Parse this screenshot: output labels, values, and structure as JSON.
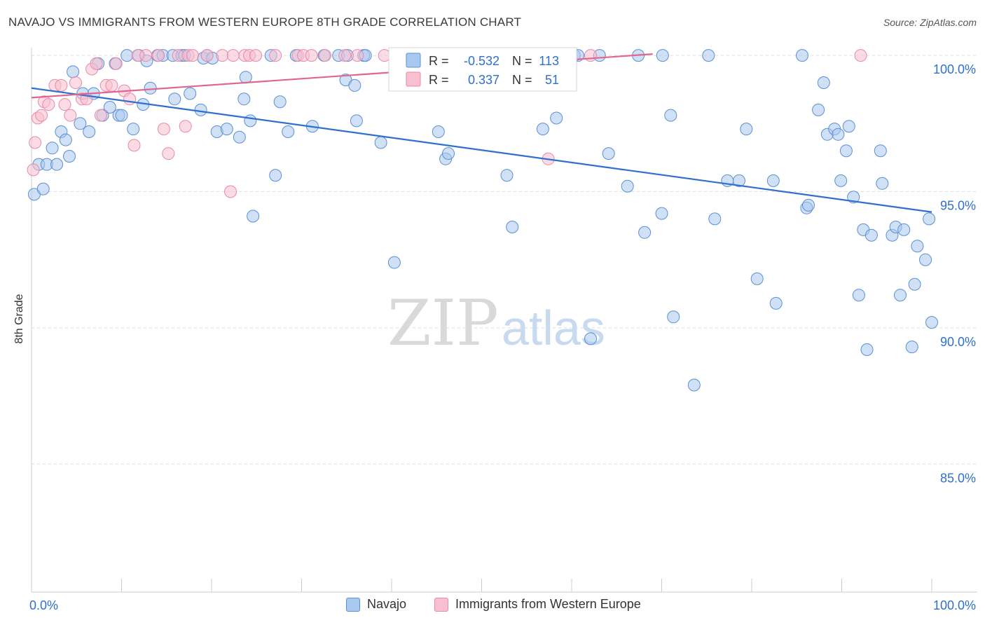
{
  "header": {
    "title": "NAVAJO VS IMMIGRANTS FROM WESTERN EUROPE 8TH GRADE CORRELATION CHART",
    "source": "Source: ZipAtlas.com"
  },
  "watermark": {
    "zip": "ZIP",
    "atlas": "atlas"
  },
  "colors": {
    "navajo_fill": "#a9c8ef",
    "navajo_stroke": "#5b8fd6",
    "navajo_line": "#2f6fcf",
    "western_fill": "#f7bfd0",
    "western_stroke": "#e88aa8",
    "western_line": "#e06690",
    "value_text": "#2f6fcf",
    "grid": "#dddddd"
  },
  "legend": {
    "rows": [
      {
        "series": "navajo",
        "r_label": "R =",
        "r_value": "-0.532",
        "n_label": "N =",
        "n_value": "113"
      },
      {
        "series": "western",
        "r_label": "R =",
        "r_value": "0.337",
        "n_label": "N =",
        "n_value": "51"
      }
    ]
  },
  "bottom_legend": [
    {
      "series": "navajo",
      "label": "Navajo"
    },
    {
      "series": "western",
      "label": "Immigrants from Western Europe"
    }
  ],
  "chart_data": {
    "type": "scatter",
    "title": "NAVAJO VS IMMIGRANTS FROM WESTERN EUROPE 8TH GRADE CORRELATION CHART",
    "xlabel": "",
    "ylabel": "8th Grade",
    "xlim": [
      0,
      100
    ],
    "ylim": [
      80.3,
      100.8
    ],
    "x_tick_labels": [
      {
        "value": 0,
        "label": "0.0%"
      },
      {
        "value": 100,
        "label": "100.0%"
      }
    ],
    "y_tick_labels": [
      {
        "value": 100,
        "label": "100.0%"
      },
      {
        "value": 95,
        "label": "95.0%"
      },
      {
        "value": 90,
        "label": "90.0%"
      },
      {
        "value": 85,
        "label": "85.0%"
      }
    ],
    "y_gridlines": [
      100,
      95,
      90,
      85
    ],
    "x_minor_ticks": [
      0,
      10,
      20,
      30,
      40,
      50,
      60,
      70,
      80,
      90,
      100
    ],
    "series": [
      {
        "name": "Navajo",
        "key": "navajo",
        "R": -0.532,
        "N": 113,
        "trend": {
          "x": [
            0,
            100
          ],
          "y": [
            98.8,
            94.25
          ]
        },
        "points": [
          [
            0.3,
            94.9
          ],
          [
            0.8,
            96
          ],
          [
            1.3,
            95.1
          ],
          [
            1.7,
            96
          ],
          [
            2.3,
            96.6
          ],
          [
            2.8,
            96
          ],
          [
            3.3,
            97.2
          ],
          [
            3.8,
            96.9
          ],
          [
            4.2,
            96.3
          ],
          [
            4.6,
            99.4
          ],
          [
            5.4,
            97.5
          ],
          [
            5.7,
            98.6
          ],
          [
            6.4,
            97.2
          ],
          [
            6.9,
            98.6
          ],
          [
            7.4,
            99.7
          ],
          [
            7.9,
            97.8
          ],
          [
            8.7,
            98.1
          ],
          [
            9.3,
            99.7
          ],
          [
            9.7,
            97.8
          ],
          [
            10,
            97.8
          ],
          [
            10.6,
            100
          ],
          [
            11.3,
            97.3
          ],
          [
            11.9,
            100
          ],
          [
            12.4,
            98.2
          ],
          [
            12.8,
            99.8
          ],
          [
            13.2,
            98.8
          ],
          [
            14,
            100
          ],
          [
            14.6,
            100
          ],
          [
            15.7,
            100
          ],
          [
            15.9,
            98.4
          ],
          [
            16.7,
            100
          ],
          [
            17,
            100
          ],
          [
            17.6,
            98.6
          ],
          [
            18.8,
            98
          ],
          [
            19.1,
            99.9
          ],
          [
            19.5,
            100
          ],
          [
            20.1,
            99.9
          ],
          [
            20.6,
            97.2
          ],
          [
            21.7,
            97.3
          ],
          [
            23.1,
            97
          ],
          [
            23.6,
            98.4
          ],
          [
            23.8,
            99.2
          ],
          [
            24.3,
            97.6
          ],
          [
            24.6,
            94.1
          ],
          [
            26.6,
            100
          ],
          [
            27.1,
            95.6
          ],
          [
            27.6,
            98.3
          ],
          [
            28.5,
            97.2
          ],
          [
            29.4,
            100
          ],
          [
            31.2,
            97.4
          ],
          [
            32.5,
            100
          ],
          [
            34.1,
            100
          ],
          [
            34.9,
            99.1
          ],
          [
            35.1,
            100
          ],
          [
            35.9,
            98.9
          ],
          [
            36.1,
            97.6
          ],
          [
            36.9,
            100
          ],
          [
            37.1,
            100
          ],
          [
            38.8,
            96.8
          ],
          [
            40.3,
            92.4
          ],
          [
            45.2,
            97.2
          ],
          [
            46,
            96.2
          ],
          [
            46.3,
            96.4
          ],
          [
            52.8,
            95.6
          ],
          [
            53.4,
            93.7
          ],
          [
            56.8,
            97.3
          ],
          [
            58.3,
            97.7
          ],
          [
            60.3,
            100
          ],
          [
            60.7,
            100
          ],
          [
            62.1,
            89.6
          ],
          [
            63.1,
            100
          ],
          [
            64.1,
            96.4
          ],
          [
            66.2,
            95.2
          ],
          [
            67.4,
            100
          ],
          [
            68.1,
            93.5
          ],
          [
            70,
            94.2
          ],
          [
            70.1,
            100
          ],
          [
            71,
            97.8
          ],
          [
            71.3,
            90.4
          ],
          [
            73.6,
            87.9
          ],
          [
            75.2,
            100
          ],
          [
            75.9,
            94
          ],
          [
            77.3,
            95.4
          ],
          [
            78.6,
            95.4
          ],
          [
            79.4,
            97.3
          ],
          [
            80.6,
            91.8
          ],
          [
            82.4,
            95.4
          ],
          [
            82.7,
            90.9
          ],
          [
            85.6,
            100
          ],
          [
            86.1,
            94.4
          ],
          [
            86.3,
            94.5
          ],
          [
            87.4,
            98
          ],
          [
            88,
            99
          ],
          [
            88.4,
            97.1
          ],
          [
            89.2,
            97.3
          ],
          [
            89.6,
            97.1
          ],
          [
            89.9,
            95.4
          ],
          [
            90.5,
            96.5
          ],
          [
            90.8,
            97.4
          ],
          [
            91.3,
            94.8
          ],
          [
            91.9,
            91.2
          ],
          [
            92.4,
            93.6
          ],
          [
            92.8,
            89.2
          ],
          [
            93.3,
            93.4
          ],
          [
            94.3,
            96.5
          ],
          [
            94.5,
            95.3
          ],
          [
            95.6,
            93.4
          ],
          [
            96,
            93.7
          ],
          [
            96.5,
            91.2
          ],
          [
            96.9,
            93.6
          ],
          [
            97.8,
            89.3
          ],
          [
            98.1,
            91.6
          ],
          [
            98.4,
            93
          ],
          [
            99.3,
            92.5
          ],
          [
            99.7,
            94
          ],
          [
            100,
            90.2
          ]
        ]
      },
      {
        "name": "Immigrants from Western Europe",
        "key": "western",
        "R": 0.337,
        "N": 51,
        "trend": {
          "x": [
            0,
            69
          ],
          "y": [
            98.45,
            100.05
          ]
        },
        "points": [
          [
            0.2,
            95.8
          ],
          [
            0.4,
            96.8
          ],
          [
            0.7,
            97.7
          ],
          [
            1.1,
            97.8
          ],
          [
            1.4,
            98.3
          ],
          [
            1.9,
            98.2
          ],
          [
            2.6,
            98.9
          ],
          [
            3.3,
            98.9
          ],
          [
            3.7,
            98.2
          ],
          [
            4.3,
            97.8
          ],
          [
            4.9,
            99
          ],
          [
            5.6,
            98.4
          ],
          [
            6.1,
            98.4
          ],
          [
            6.7,
            99.5
          ],
          [
            7.2,
            99.7
          ],
          [
            7.7,
            97.8
          ],
          [
            8.3,
            98.9
          ],
          [
            8.9,
            98.9
          ],
          [
            9.4,
            99.7
          ],
          [
            10.3,
            98.7
          ],
          [
            10.9,
            98.4
          ],
          [
            11.4,
            96.7
          ],
          [
            11.8,
            100
          ],
          [
            12.7,
            100
          ],
          [
            14.1,
            100
          ],
          [
            14.7,
            97.3
          ],
          [
            15.2,
            96.4
          ],
          [
            16.3,
            100
          ],
          [
            17.1,
            97.4
          ],
          [
            17.4,
            100
          ],
          [
            17.9,
            100
          ],
          [
            19.5,
            100
          ],
          [
            21.2,
            100
          ],
          [
            22.1,
            95
          ],
          [
            22.4,
            100
          ],
          [
            23.7,
            100
          ],
          [
            24.2,
            100
          ],
          [
            24.9,
            100
          ],
          [
            27.1,
            100
          ],
          [
            29.6,
            100
          ],
          [
            30.2,
            100
          ],
          [
            31.1,
            100
          ],
          [
            32.6,
            100
          ],
          [
            34.8,
            100
          ],
          [
            36.2,
            100
          ],
          [
            39.2,
            100
          ],
          [
            41.3,
            100
          ],
          [
            48.1,
            100
          ],
          [
            57.4,
            96.2
          ],
          [
            62.1,
            100
          ],
          [
            92.1,
            100
          ]
        ]
      }
    ]
  }
}
